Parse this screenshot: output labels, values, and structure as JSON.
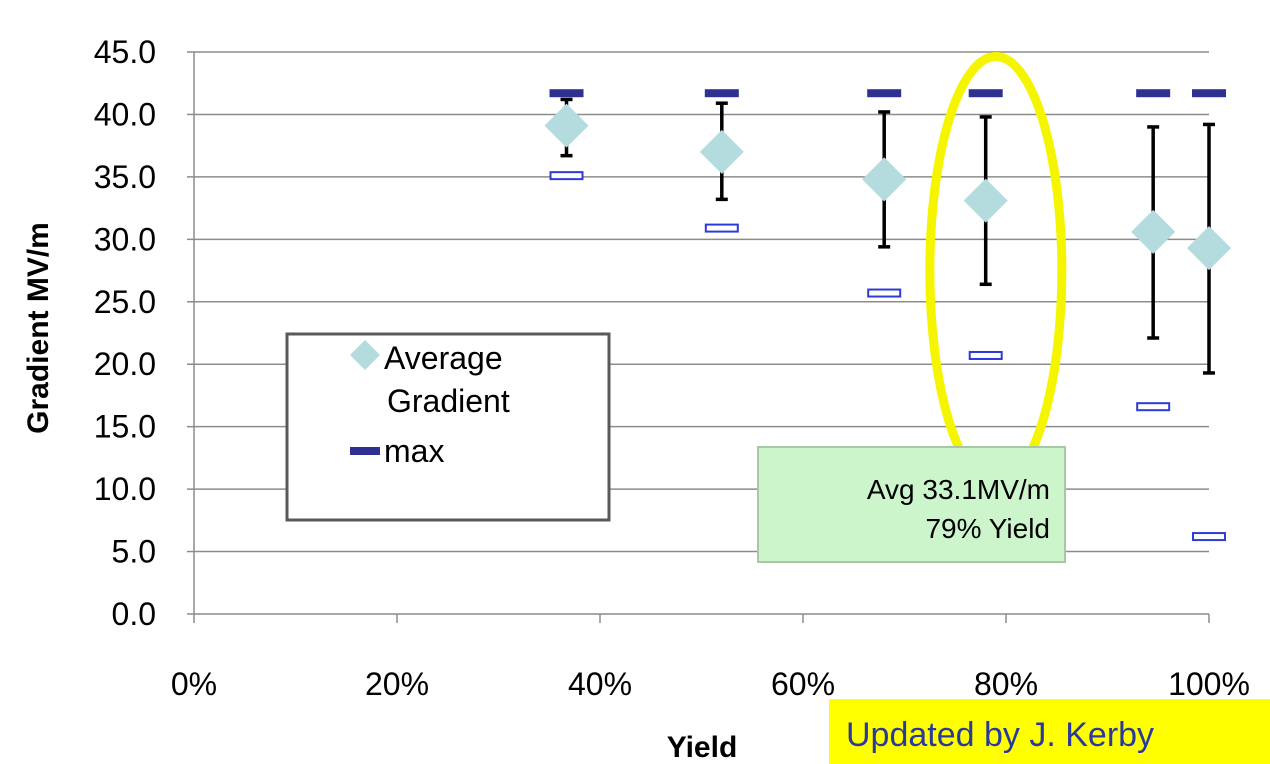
{
  "chart_data": {
    "type": "scatter",
    "title": "",
    "xlabel": "Yield",
    "ylabel": "Gradient MV/m",
    "xlim": [
      0,
      1
    ],
    "ylim": [
      0,
      45
    ],
    "x_ticks": [
      "0%",
      "20%",
      "40%",
      "60%",
      "80%",
      "100%"
    ],
    "x_tick_values": [
      0,
      0.2,
      0.4,
      0.6,
      0.8,
      1.0
    ],
    "y_ticks": [
      "0.0",
      "5.0",
      "10.0",
      "15.0",
      "20.0",
      "25.0",
      "30.0",
      "35.0",
      "40.0",
      "45.0"
    ],
    "y_tick_values": [
      0,
      5,
      10,
      15,
      20,
      25,
      30,
      35,
      40,
      45
    ],
    "grid": "horizontal",
    "legend_placement": "left",
    "legend": {
      "items": [
        {
          "label_lines": [
            "Average",
            "Gradient"
          ],
          "marker": "diamond",
          "color": "#b4dcdf"
        },
        {
          "label_lines": [
            "max"
          ],
          "marker": "dash",
          "color": "#2e3192"
        }
      ]
    },
    "series": [
      {
        "name": "Average Gradient",
        "marker": "diamond",
        "color": "#b4dcdf",
        "x": [
          0.367,
          0.52,
          0.68,
          0.78,
          0.945,
          1.0
        ],
        "y": [
          39.1,
          37.0,
          34.8,
          33.1,
          30.6,
          29.3
        ],
        "err_low": [
          36.7,
          33.2,
          29.4,
          26.4,
          22.1,
          19.3
        ],
        "err_high": [
          41.2,
          40.9,
          40.2,
          39.8,
          39.0,
          39.2
        ]
      },
      {
        "name": "max",
        "marker": "dash",
        "color": "#2e3192",
        "x": [
          0.367,
          0.52,
          0.68,
          0.78,
          0.945,
          1.0
        ],
        "y": [
          41.7,
          41.7,
          41.7,
          41.7,
          41.7,
          41.7
        ]
      },
      {
        "marker": "hollow-dash",
        "color": "#2e3bd6",
        "x": [
          0.367,
          0.52,
          0.68,
          0.78,
          0.945,
          1.0
        ],
        "y": [
          35.1,
          30.9,
          25.7,
          20.7,
          16.6,
          6.2
        ]
      }
    ],
    "highlight_ellipse": {
      "x": 0.79,
      "y_center": 27.5,
      "color": "#f5f500"
    },
    "annotation": {
      "lines": [
        "Avg 33.1MV/m",
        "79% Yield"
      ],
      "fill": "#ccf5cc",
      "stroke": "#a6c8a6"
    },
    "credit": {
      "text": "Updated by J. Kerby",
      "fill": "#ffff00",
      "color": "#2a3a9a"
    }
  }
}
